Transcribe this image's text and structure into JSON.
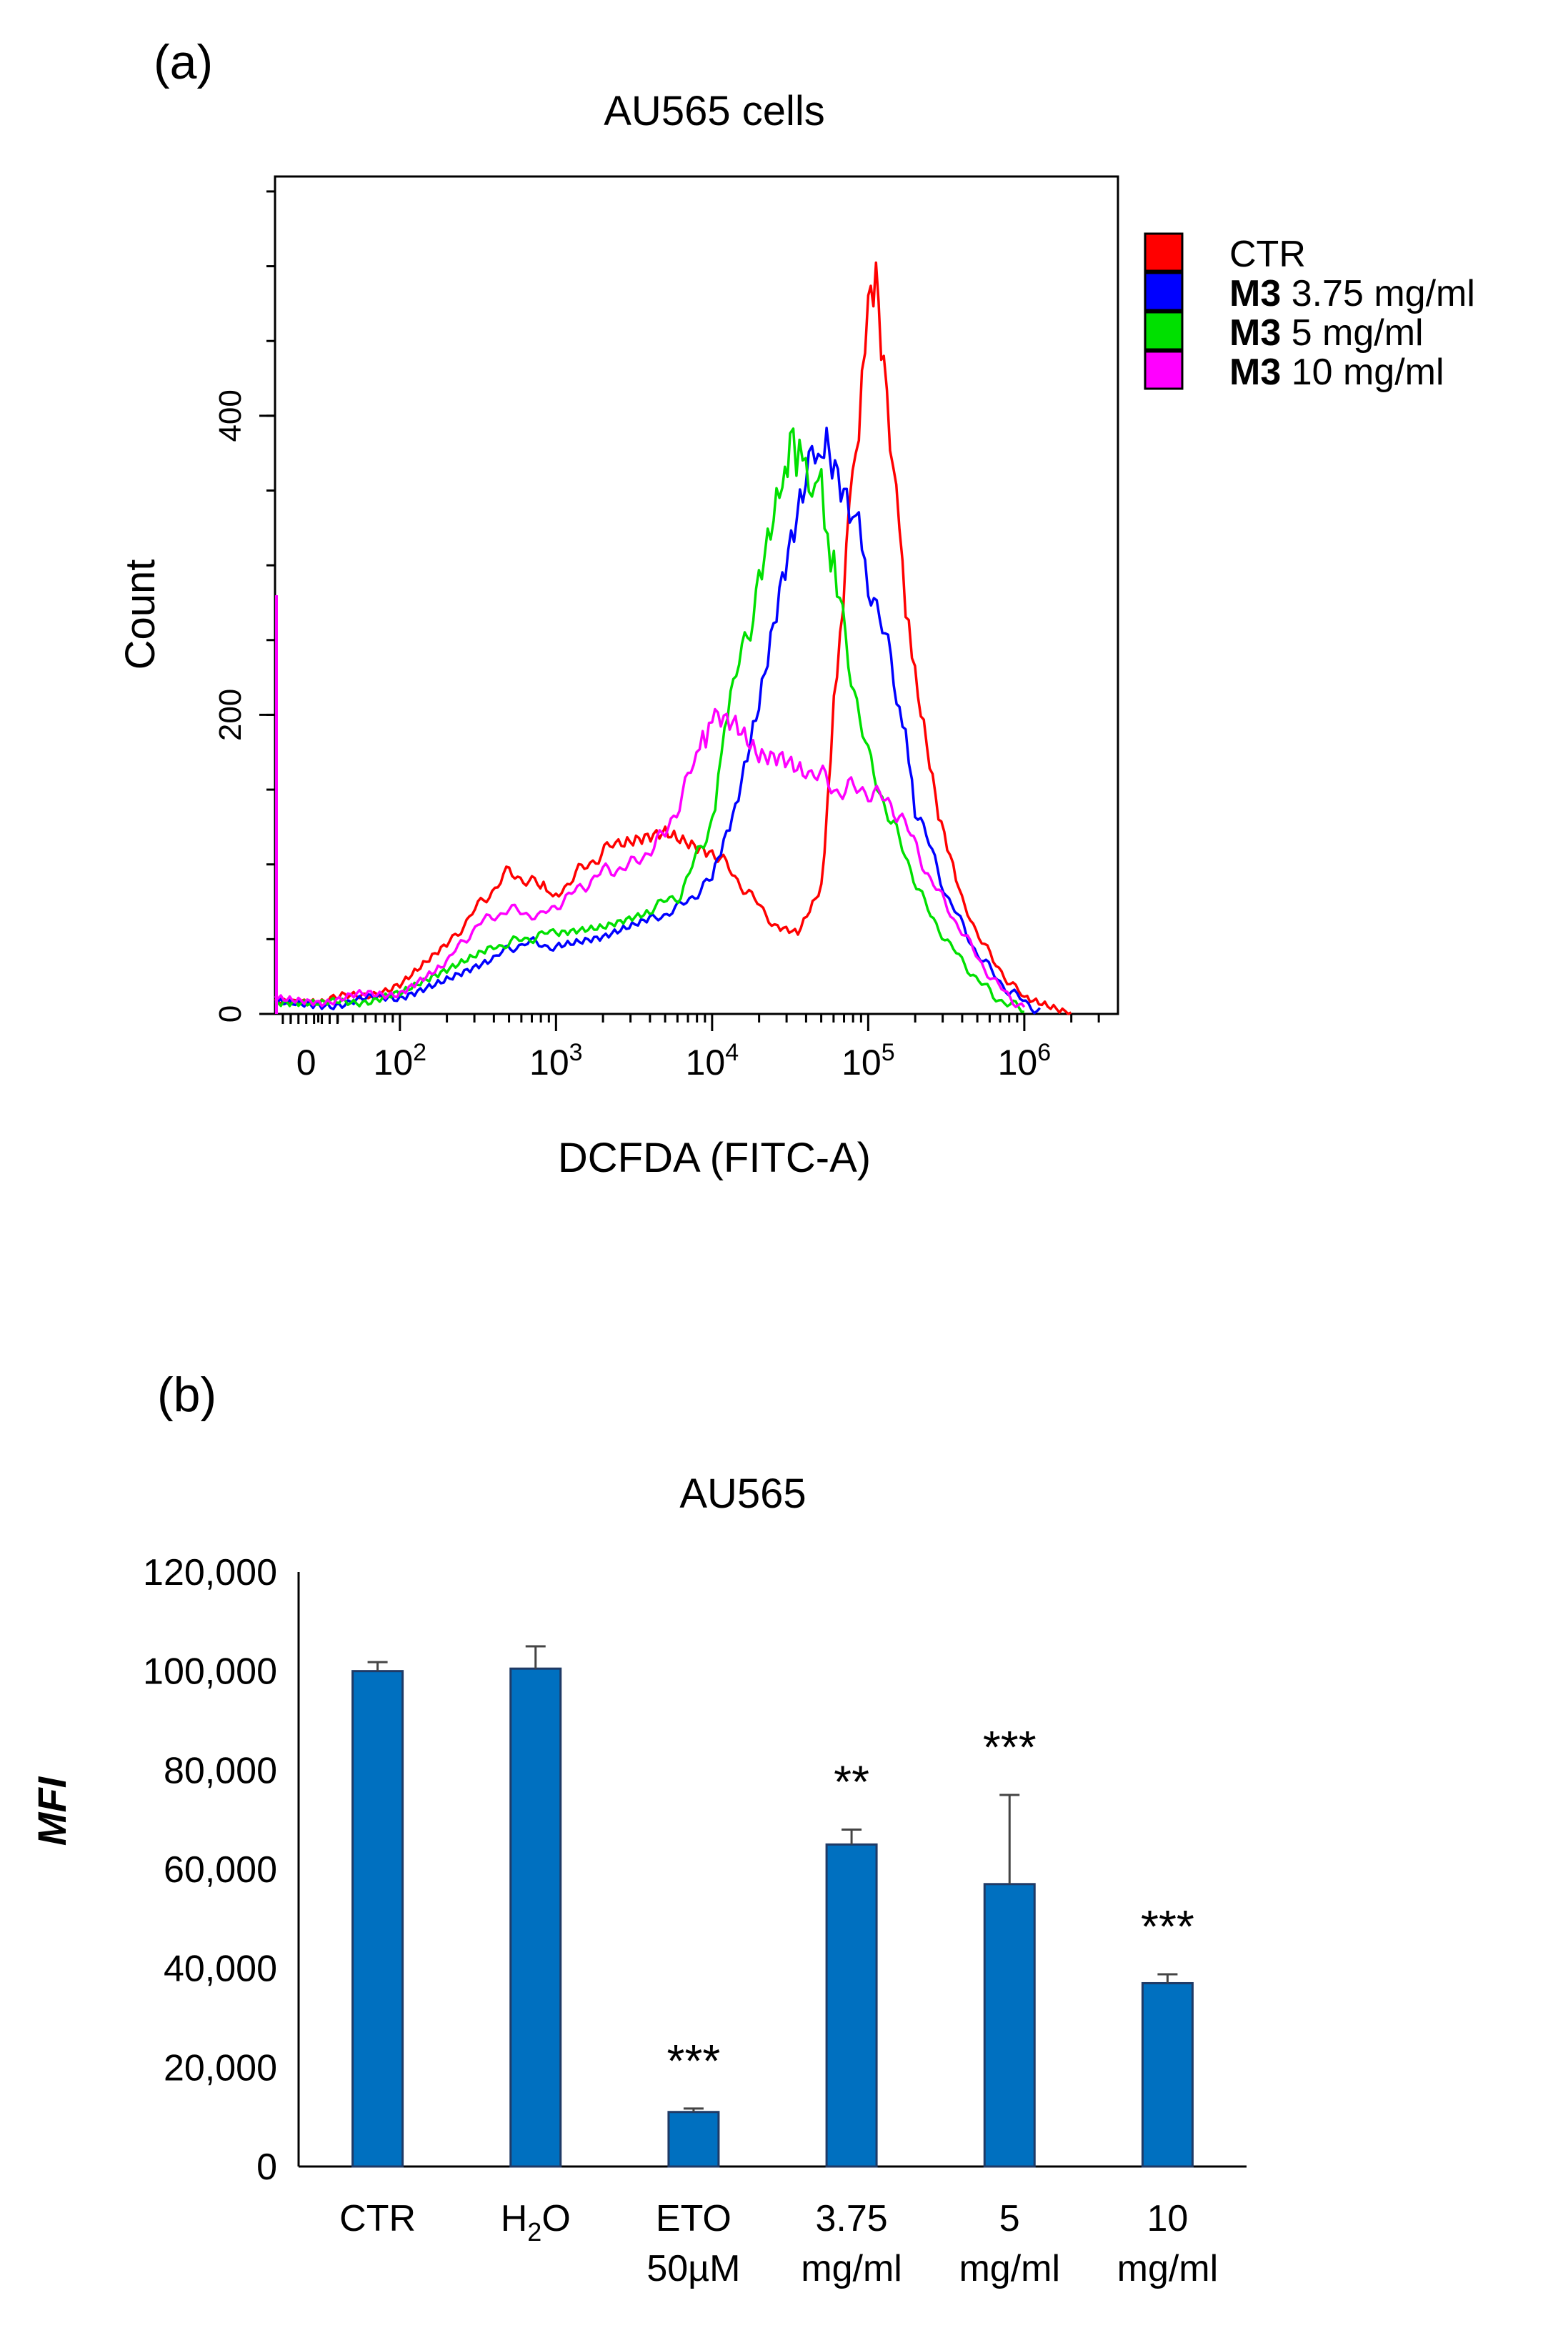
{
  "panels": {
    "a": {
      "label": "(a)"
    },
    "b": {
      "label": "(b)"
    }
  },
  "chart_data": [
    {
      "type": "line",
      "panel": "(a)",
      "title": "AU565 cells",
      "xlabel": "DCFDA (FITC-A)",
      "ylabel": "Count",
      "x_scale": "log (biexponential display)",
      "xlim_log10": [
        1.2,
        6.6
      ],
      "ylim": [
        0,
        560
      ],
      "x_tick_labels": [
        {
          "pos": 1.4,
          "base": "0",
          "exp": ""
        },
        {
          "pos": 2.0,
          "base": "10",
          "exp": "2"
        },
        {
          "pos": 3.0,
          "base": "10",
          "exp": "3"
        },
        {
          "pos": 4.0,
          "base": "10",
          "exp": "4"
        },
        {
          "pos": 5.0,
          "base": "10",
          "exp": "5"
        },
        {
          "pos": 6.0,
          "base": "10",
          "exp": "6"
        }
      ],
      "y_ticks": [
        0,
        200,
        400
      ],
      "legend_position": "right",
      "series": [
        {
          "name": "CTR",
          "bold_prefix": "",
          "label": "CTR",
          "color": "#ff0000",
          "x": [
            1.2,
            1.5,
            2.0,
            2.3,
            2.5,
            2.7,
            2.9,
            3.0,
            3.2,
            3.4,
            3.7,
            4.0,
            4.2,
            4.4,
            4.55,
            4.7,
            4.8,
            4.9,
            5.0,
            5.05,
            5.1,
            5.2,
            5.3,
            5.45,
            5.6,
            5.8,
            6.0,
            6.3
          ],
          "y": [
            10,
            8,
            18,
            45,
            72,
            95,
            85,
            80,
            100,
            115,
            125,
            110,
            85,
            60,
            55,
            85,
            230,
            360,
            460,
            490,
            440,
            320,
            220,
            130,
            75,
            35,
            10,
            0
          ]
        },
        {
          "name": "M3 3.75 mg/ml",
          "bold_prefix": "M3",
          "label": "3.75 mg/ml",
          "color": "#0000ff",
          "x": [
            1.2,
            1.5,
            2.0,
            2.3,
            2.6,
            2.8,
            3.0,
            3.3,
            3.6,
            3.8,
            4.0,
            4.15,
            4.3,
            4.45,
            4.6,
            4.7,
            4.75,
            4.9,
            5.0,
            5.2,
            5.3,
            5.5,
            5.7,
            5.9,
            6.1
          ],
          "y": [
            8,
            6,
            12,
            25,
            38,
            48,
            45,
            50,
            62,
            72,
            90,
            135,
            205,
            290,
            360,
            385,
            380,
            340,
            295,
            210,
            140,
            80,
            40,
            15,
            2
          ]
        },
        {
          "name": "M3 5 mg/ml",
          "bold_prefix": "M3",
          "label": "5 mg/ml",
          "color": "#00e000",
          "x": [
            1.2,
            1.5,
            2.0,
            2.3,
            2.6,
            2.8,
            3.0,
            3.3,
            3.6,
            3.8,
            4.0,
            4.1,
            4.3,
            4.45,
            4.5,
            4.6,
            4.7,
            4.8,
            5.0,
            5.2,
            5.4,
            5.6,
            5.8,
            6.0
          ],
          "y": [
            7,
            6,
            12,
            28,
            45,
            50,
            55,
            60,
            70,
            80,
            130,
            200,
            290,
            355,
            395,
            360,
            350,
            280,
            170,
            115,
            65,
            35,
            12,
            2
          ]
        },
        {
          "name": "M3 10 mg/ml",
          "bold_prefix": "M3",
          "label": "10 mg/ml",
          "color": "#ff00ff",
          "x": [
            1.2,
            1.5,
            2.0,
            2.3,
            2.5,
            2.7,
            2.9,
            3.1,
            3.3,
            3.5,
            3.7,
            3.9,
            4.0,
            4.15,
            4.3,
            4.45,
            4.6,
            4.8,
            5.0,
            5.2,
            5.4,
            5.6,
            5.8,
            6.0
          ],
          "y": [
            12,
            9,
            15,
            35,
            60,
            70,
            65,
            80,
            95,
            100,
            120,
            170,
            200,
            195,
            175,
            175,
            165,
            150,
            150,
            135,
            90,
            55,
            22,
            3
          ]
        }
      ],
      "artifact_at_axis": {
        "x": 1.2,
        "y": 280,
        "color": "#ff00ff"
      }
    },
    {
      "type": "bar",
      "panel": "(b)",
      "title": "AU565",
      "xlabel": "",
      "ylabel": "MFI",
      "ylim": [
        0,
        120000
      ],
      "y_ticks": [
        0,
        20000,
        40000,
        60000,
        80000,
        100000,
        120000
      ],
      "y_tick_labels": [
        "0",
        "20,000",
        "40,000",
        "60,000",
        "80,000",
        "100,000",
        "120,000"
      ],
      "bar_color": "#0070c0",
      "categories": [
        {
          "line1": "CTR",
          "line2": ""
        },
        {
          "line1": "H",
          "sub": "2",
          "line1b": "O",
          "line2": ""
        },
        {
          "line1": "ETO",
          "line2": "50µM"
        },
        {
          "line1": "3.75",
          "line2": "mg/ml"
        },
        {
          "line1": "5",
          "line2": "mg/ml"
        },
        {
          "line1": "10",
          "line2": "mg/ml"
        }
      ],
      "values": [
        100000,
        100500,
        11000,
        65000,
        57000,
        37000
      ],
      "errors": [
        1800,
        4500,
        700,
        3000,
        18000,
        1800
      ],
      "significance": [
        "",
        "",
        "***",
        "**",
        "***",
        "***"
      ]
    }
  ]
}
